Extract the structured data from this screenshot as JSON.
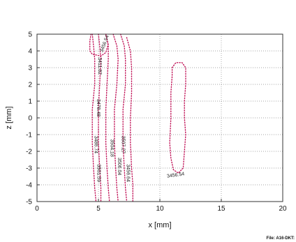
{
  "chart_data": {
    "type": "line",
    "title": "",
    "xlabel": "x [mm]",
    "ylabel": "z [mm]",
    "xlim": [
      0,
      20
    ],
    "ylim": [
      -5,
      5
    ],
    "xticks": [
      0,
      5,
      10,
      15,
      20
    ],
    "yticks": [
      -5,
      -4,
      -3,
      -2,
      -1,
      0,
      1,
      2,
      3,
      4,
      5
    ],
    "grid": true,
    "line_style": "dotted",
    "line_color": "#c2185b",
    "contours": [
      {
        "points": [
          [
            4.5,
            5
          ],
          [
            4.6,
            4.3
          ],
          [
            4.7,
            3.5
          ],
          [
            4.7,
            2
          ],
          [
            4.5,
            0.5
          ],
          [
            4.5,
            -1.5
          ],
          [
            4.6,
            -3
          ],
          [
            4.7,
            -4.2
          ],
          [
            4.8,
            -5
          ]
        ]
      },
      {
        "points": [
          [
            5.0,
            5
          ],
          [
            5.1,
            4.3
          ],
          [
            5.2,
            3.5
          ],
          [
            5.1,
            2
          ],
          [
            5.0,
            0.5
          ],
          [
            5.0,
            -1.5
          ],
          [
            5.1,
            -3
          ],
          [
            5.2,
            -4.2
          ],
          [
            5.2,
            -5
          ]
        ]
      },
      {
        "points": [
          [
            5.6,
            5
          ],
          [
            5.8,
            4.3
          ],
          [
            5.8,
            3.5
          ],
          [
            5.7,
            2
          ],
          [
            5.6,
            0.5
          ],
          [
            5.6,
            -1.5
          ],
          [
            5.7,
            -3
          ],
          [
            5.8,
            -4.2
          ],
          [
            5.9,
            -5
          ]
        ]
      },
      {
        "points": [
          [
            6.2,
            5
          ],
          [
            6.5,
            4.3
          ],
          [
            6.6,
            3.5
          ],
          [
            6.5,
            2
          ],
          [
            6.3,
            0.5
          ],
          [
            6.3,
            -1.5
          ],
          [
            6.4,
            -3
          ],
          [
            6.5,
            -4.2
          ],
          [
            6.6,
            -5
          ]
        ]
      },
      {
        "points": [
          [
            6.8,
            5
          ],
          [
            7.1,
            4.3
          ],
          [
            7.2,
            3.5
          ],
          [
            7.2,
            2
          ],
          [
            7.0,
            0.5
          ],
          [
            7.0,
            -1.5
          ],
          [
            7.1,
            -3
          ],
          [
            7.2,
            -4.2
          ],
          [
            7.3,
            -5
          ]
        ]
      },
      {
        "points": [
          [
            7.3,
            4.8
          ],
          [
            7.6,
            4.0
          ],
          [
            7.7,
            3.0
          ],
          [
            7.7,
            1.5
          ],
          [
            7.6,
            0
          ],
          [
            7.6,
            -1.5
          ],
          [
            7.7,
            -3
          ],
          [
            7.8,
            -4.0
          ],
          [
            7.8,
            -5
          ]
        ]
      },
      {
        "points": [
          [
            4.4,
            5
          ],
          [
            4.3,
            4.6
          ],
          [
            4.3,
            4.0
          ],
          [
            4.5,
            3.8
          ],
          [
            5.2,
            3.7
          ],
          [
            5.6,
            3.9
          ],
          [
            5.8,
            4.4
          ],
          [
            5.6,
            5
          ]
        ]
      },
      {
        "points": [
          [
            11.0,
            3.0
          ],
          [
            11.3,
            3.3
          ],
          [
            11.8,
            3.3
          ],
          [
            12.1,
            3.0
          ],
          [
            12.1,
            2
          ],
          [
            12.0,
            1
          ],
          [
            12.0,
            0
          ],
          [
            12.1,
            -1
          ],
          [
            12.0,
            -2
          ],
          [
            11.9,
            -3.0
          ],
          [
            11.5,
            -3.3
          ],
          [
            11.1,
            -3.1
          ],
          [
            10.9,
            -2.4
          ],
          [
            10.8,
            -1.5
          ],
          [
            10.9,
            0
          ],
          [
            10.9,
            1.5
          ],
          [
            11.0,
            2.5
          ],
          [
            11.0,
            3.0
          ]
        ]
      }
    ],
    "contour_labels": [
      {
        "text": "3456.54",
        "x": 5.6,
        "y": 4.4,
        "rotate": -70
      },
      {
        "text": "3411.82",
        "x": 5.0,
        "y": 3.1,
        "rotate": 90
      },
      {
        "text": "3478.48",
        "x": 4.9,
        "y": 0.6,
        "rotate": 90
      },
      {
        "text": "3486.74",
        "x": 4.7,
        "y": -1.6,
        "rotate": 90
      },
      {
        "text": "3501.59",
        "x": 4.9,
        "y": -3.3,
        "rotate": 90
      },
      {
        "text": "3504.18",
        "x": 6.0,
        "y": -1.8,
        "rotate": 90
      },
      {
        "text": "3506.04",
        "x": 6.6,
        "y": -2.9,
        "rotate": 90
      },
      {
        "text": "3507.27",
        "x": 6.9,
        "y": -1.6,
        "rotate": 90
      },
      {
        "text": "3456.64",
        "x": 7.3,
        "y": -3.3,
        "rotate": 90
      },
      {
        "text": "3456.54",
        "x": 11.3,
        "y": -3.5,
        "rotate": -8
      }
    ]
  },
  "footer": {
    "file_label": "File: A16-DKT:"
  }
}
